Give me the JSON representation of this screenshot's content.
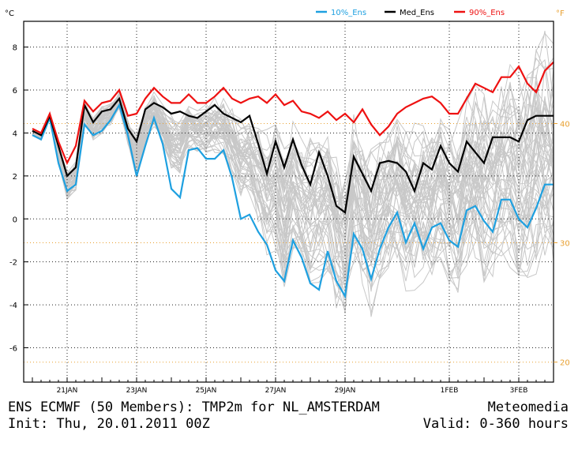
{
  "header": {
    "unit_c": "°C",
    "unit_f": "°F"
  },
  "footer": {
    "line1_left": "ENS ECMWF (50 Members): TMP2m for NL_AMSTERDAM",
    "line2_left": "Init: Thu, 20.01.2011 00Z",
    "line1_right": "Meteomedia",
    "line2_right": "Valid: 0-360 hours"
  },
  "colors": {
    "p10": "#1ea0e0",
    "median": "#000000",
    "p90": "#ee1111",
    "members": "#c8c8c8",
    "fahrenheit": "#e8a030",
    "grid": "#222222"
  },
  "chart_data": {
    "type": "line",
    "title": "",
    "x_unit": "hours",
    "xlim": [
      -6,
      360
    ],
    "ylim": [
      -7.6,
      9.2
    ],
    "x_ticks": [
      {
        "x": 24,
        "label": "21JAN"
      },
      {
        "x": 72,
        "label": "23JAN"
      },
      {
        "x": 120,
        "label": "25JAN"
      },
      {
        "x": 168,
        "label": "27JAN"
      },
      {
        "x": 216,
        "label": "29JAN"
      },
      {
        "x": 288,
        "label": "1FEB"
      },
      {
        "x": 336,
        "label": "3FEB"
      }
    ],
    "y_ticks": [
      -6,
      -4,
      -2,
      0,
      2,
      4,
      6,
      8
    ],
    "f_ticks": [
      {
        "c": -6.67,
        "label": "20"
      },
      {
        "c": -1.11,
        "label": "30"
      },
      {
        "c": 4.44,
        "label": "40"
      }
    ],
    "legend": [
      "10%_Ens",
      "Med_Ens",
      "90%_Ens"
    ],
    "series": [
      {
        "name": "10%_Ens",
        "color": "#1ea0e0",
        "x": [
          0,
          6,
          12,
          18,
          24,
          30,
          36,
          42,
          48,
          54,
          60,
          66,
          72,
          78,
          84,
          90,
          96,
          102,
          108,
          114,
          120,
          126,
          132,
          138,
          144,
          150,
          156,
          162,
          168,
          174,
          180,
          186,
          192,
          198,
          204,
          210,
          216,
          222,
          228,
          234,
          240,
          246,
          252,
          258,
          264,
          270,
          276,
          282,
          288,
          294,
          300,
          306,
          312,
          318,
          324,
          330,
          336,
          342,
          348,
          354,
          360
        ],
        "y": [
          3.9,
          3.7,
          4.7,
          2.6,
          1.3,
          1.6,
          4.4,
          3.9,
          4.1,
          4.6,
          5.3,
          3.9,
          2.0,
          3.4,
          4.7,
          3.5,
          1.4,
          1.0,
          3.2,
          3.3,
          2.8,
          2.8,
          3.2,
          1.9,
          0.0,
          0.2,
          -0.6,
          -1.2,
          -2.4,
          -2.9,
          -1.0,
          -1.8,
          -3.0,
          -3.3,
          -1.5,
          -2.9,
          -3.6,
          -0.7,
          -1.4,
          -2.8,
          -1.4,
          -0.4,
          0.3,
          -1.1,
          -0.2,
          -1.4,
          -0.4,
          -0.2,
          -1.0,
          -1.3,
          0.4,
          0.6,
          -0.1,
          -0.6,
          0.9,
          0.9,
          0.0,
          -0.4,
          0.5,
          1.6,
          1.6
        ]
      },
      {
        "name": "Med_Ens",
        "color": "#000000",
        "x": [
          0,
          6,
          12,
          18,
          24,
          30,
          36,
          42,
          48,
          54,
          60,
          66,
          72,
          78,
          84,
          90,
          96,
          102,
          108,
          114,
          120,
          126,
          132,
          138,
          144,
          150,
          156,
          162,
          168,
          174,
          180,
          186,
          192,
          198,
          204,
          210,
          216,
          222,
          228,
          234,
          240,
          246,
          252,
          258,
          264,
          270,
          276,
          282,
          288,
          294,
          300,
          306,
          312,
          318,
          324,
          330,
          336,
          342,
          348,
          354,
          360
        ],
        "y": [
          4.1,
          3.9,
          4.8,
          3.4,
          2.0,
          2.4,
          5.3,
          4.5,
          5.0,
          5.1,
          5.6,
          4.2,
          3.6,
          5.1,
          5.4,
          5.2,
          4.9,
          5.0,
          4.8,
          4.7,
          5.0,
          5.3,
          4.9,
          4.7,
          4.5,
          4.8,
          3.5,
          2.1,
          3.6,
          2.4,
          3.7,
          2.5,
          1.6,
          3.1,
          2.0,
          0.6,
          0.3,
          2.9,
          2.1,
          1.3,
          2.6,
          2.7,
          2.6,
          2.2,
          1.3,
          2.6,
          2.3,
          3.4,
          2.6,
          2.2,
          3.6,
          3.1,
          2.6,
          3.8,
          3.8,
          3.8,
          3.6,
          4.6,
          4.8,
          4.8,
          4.8
        ]
      },
      {
        "name": "90%_Ens",
        "color": "#ee1111",
        "x": [
          0,
          6,
          12,
          18,
          24,
          30,
          36,
          42,
          48,
          54,
          60,
          66,
          72,
          78,
          84,
          90,
          96,
          102,
          108,
          114,
          120,
          126,
          132,
          138,
          144,
          150,
          156,
          162,
          168,
          174,
          180,
          186,
          192,
          198,
          204,
          210,
          216,
          222,
          228,
          234,
          240,
          246,
          252,
          258,
          264,
          270,
          276,
          282,
          288,
          294,
          300,
          306,
          312,
          318,
          324,
          330,
          336,
          342,
          348,
          354,
          360
        ],
        "y": [
          4.2,
          4.0,
          4.9,
          3.6,
          2.6,
          3.4,
          5.5,
          5.0,
          5.4,
          5.5,
          6.0,
          4.8,
          4.9,
          5.6,
          6.1,
          5.7,
          5.4,
          5.4,
          5.8,
          5.4,
          5.4,
          5.7,
          6.1,
          5.6,
          5.4,
          5.6,
          5.7,
          5.4,
          5.8,
          5.3,
          5.5,
          5.0,
          4.9,
          4.7,
          5.0,
          4.6,
          4.9,
          4.5,
          5.1,
          4.4,
          3.9,
          4.3,
          4.9,
          5.2,
          5.4,
          5.6,
          5.7,
          5.4,
          4.9,
          4.9,
          5.6,
          6.3,
          6.1,
          5.9,
          6.6,
          6.6,
          7.1,
          6.3,
          5.9,
          6.9,
          7.3
        ]
      }
    ],
    "members": [
      {
        "base": [
          4.0,
          3.8,
          4.8,
          3.0,
          1.6,
          2.0,
          5.0,
          4.2,
          4.6,
          4.9,
          5.5,
          4.0,
          3.0,
          4.4,
          5.1,
          4.4,
          3.6,
          3.4,
          4.4,
          4.2,
          4.2,
          4.3,
          4.3,
          3.6,
          2.9,
          3.0,
          2.2,
          1.2,
          1.6,
          0.2,
          1.8,
          0.6,
          0.4,
          0.9,
          0.8,
          -0.6,
          -1.0,
          1.4,
          0.6,
          -0.5,
          0.6,
          1.2,
          1.5,
          0.6,
          0.6,
          0.6,
          1.0,
          1.6,
          0.8,
          0.5,
          1.9,
          2.0,
          1.4,
          1.6,
          2.4,
          2.4,
          1.8,
          2.2,
          2.7,
          3.2,
          3.2
        ],
        "spread": [
          0.1,
          0.1,
          0.1,
          0.3,
          0.5,
          0.5,
          0.4,
          0.4,
          0.5,
          0.4,
          0.3,
          0.5,
          0.8,
          0.7,
          0.6,
          0.7,
          1.0,
          1.1,
          0.8,
          0.8,
          0.9,
          1.0,
          1.1,
          1.2,
          1.4,
          1.5,
          1.8,
          2.2,
          2.4,
          2.6,
          2.4,
          2.6,
          2.8,
          2.9,
          2.6,
          2.8,
          3.0,
          2.6,
          2.7,
          2.9,
          2.6,
          2.6,
          2.6,
          2.8,
          2.8,
          2.9,
          2.9,
          2.9,
          3.0,
          3.1,
          3.2,
          3.3,
          3.4,
          3.5,
          3.6,
          3.7,
          3.8,
          3.9,
          4.0,
          4.1,
          4.1
        ]
      }
    ]
  }
}
